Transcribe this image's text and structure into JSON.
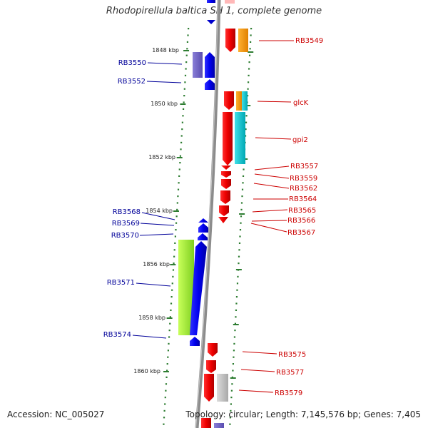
{
  "title": "Rhodopirellula baltica SH 1, complete genome",
  "footer": {
    "accession": "Accession: NC_005027",
    "summary": "Topology: circular; Length: 7,145,576 bp; Genes: 7,405"
  },
  "colors": {
    "forward_label": "#cc0000",
    "reverse_label": "#000099",
    "backbone": "#8c8c8c",
    "tick": "#2e7d32"
  },
  "scale_labels": [
    "1848 kbp",
    "1850 kbp",
    "1852 kbp",
    "1854 kbp",
    "1856 kbp",
    "1858 kbp",
    "1860 kbp"
  ],
  "gene_labels_right": [
    "RB3549",
    "glcK",
    "gpi2",
    "RB3557",
    "RB3559",
    "RB3562",
    "RB3564",
    "RB3565",
    "RB3566",
    "RB3567",
    "RB3575",
    "RB3577",
    "RB3579"
  ],
  "gene_labels_left": [
    "RB3550",
    "RB3552",
    "RB3568",
    "RB3569",
    "RB3570",
    "RB3571",
    "RB3574"
  ]
}
